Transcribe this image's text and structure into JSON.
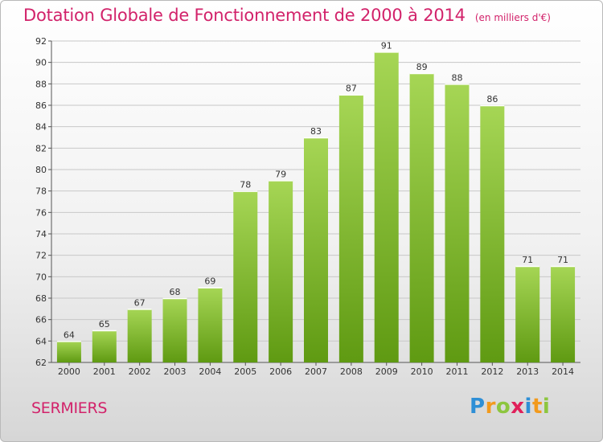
{
  "header": {
    "title": "Dotation Globale de Fonctionnement de 2000 à 2014",
    "unit": "(en milliers d'€)"
  },
  "footer": {
    "commune": "SERMIERS",
    "logo": "Proxiti",
    "logo_letters": [
      {
        "ch": "P",
        "color": "#2e8fd6"
      },
      {
        "ch": "r",
        "color": "#f29a1d"
      },
      {
        "ch": "o",
        "color": "#8dc63f"
      },
      {
        "ch": "x",
        "color": "#e0205a"
      },
      {
        "ch": "i",
        "color": "#2e8fd6"
      },
      {
        "ch": "t",
        "color": "#f29a1d"
      },
      {
        "ch": "i",
        "color": "#8dc63f"
      }
    ]
  },
  "chart_data": {
    "type": "bar",
    "title": "Dotation Globale de Fonctionnement de 2000 à 2014",
    "subtitle": "(en milliers d'€)",
    "categories": [
      "2000",
      "2001",
      "2002",
      "2003",
      "2004",
      "2005",
      "2006",
      "2007",
      "2008",
      "2009",
      "2010",
      "2011",
      "2012",
      "2013",
      "2014"
    ],
    "values": [
      64,
      65,
      67,
      68,
      69,
      78,
      79,
      83,
      87,
      91,
      89,
      88,
      86,
      71,
      71
    ],
    "ylim": [
      62,
      92
    ],
    "yticks": [
      62,
      64,
      66,
      68,
      70,
      72,
      74,
      76,
      78,
      80,
      82,
      84,
      86,
      88,
      90,
      92
    ],
    "grid": true,
    "bar_color_top": "#a6d655",
    "bar_color_bottom": "#5f9a12",
    "grid_color": "#c8c8c8"
  }
}
